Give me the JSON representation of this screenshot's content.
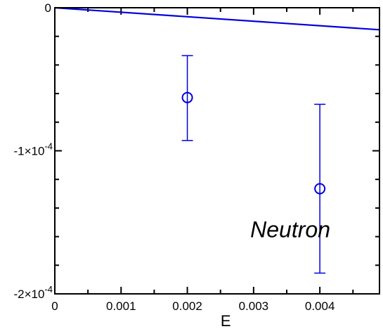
{
  "chart_data": {
    "type": "line",
    "title": "",
    "xlabel": "E",
    "ylabel": "",
    "xlim": [
      0,
      0.0049
    ],
    "ylim": [
      -0.0002,
      0
    ],
    "grid": false,
    "x_ticks": [
      {
        "value": 0,
        "label": "0"
      },
      {
        "value": 0.001,
        "label": "0.001"
      },
      {
        "value": 0.002,
        "label": "0.002"
      },
      {
        "value": 0.003,
        "label": "0.003"
      },
      {
        "value": 0.004,
        "label": "0.004"
      }
    ],
    "y_ticks": [
      {
        "value": 0,
        "base": "0",
        "exp": ""
      },
      {
        "value": -0.0001,
        "base": "-1×10",
        "exp": "-4"
      },
      {
        "value": -0.0002,
        "base": "-2×10",
        "exp": "-4"
      }
    ],
    "series": [
      {
        "type": "line",
        "color": "#0000dd",
        "x": [
          0,
          0.0049
        ],
        "y": [
          0,
          -1.54e-05
        ]
      },
      {
        "type": "scatter",
        "marker": "open-circle",
        "color": "#0000dd",
        "x": [
          0.002,
          0.004
        ],
        "y": [
          -6.28e-05,
          -0.0001265
        ],
        "yerr_low": [
          -9.28e-05,
          -0.0001855
        ],
        "yerr_high": [
          -3.35e-05,
          -6.75e-05
        ]
      }
    ],
    "annotations": [
      {
        "text": "Neutron",
        "x": 0.00295,
        "y": -0.00015
      }
    ]
  }
}
